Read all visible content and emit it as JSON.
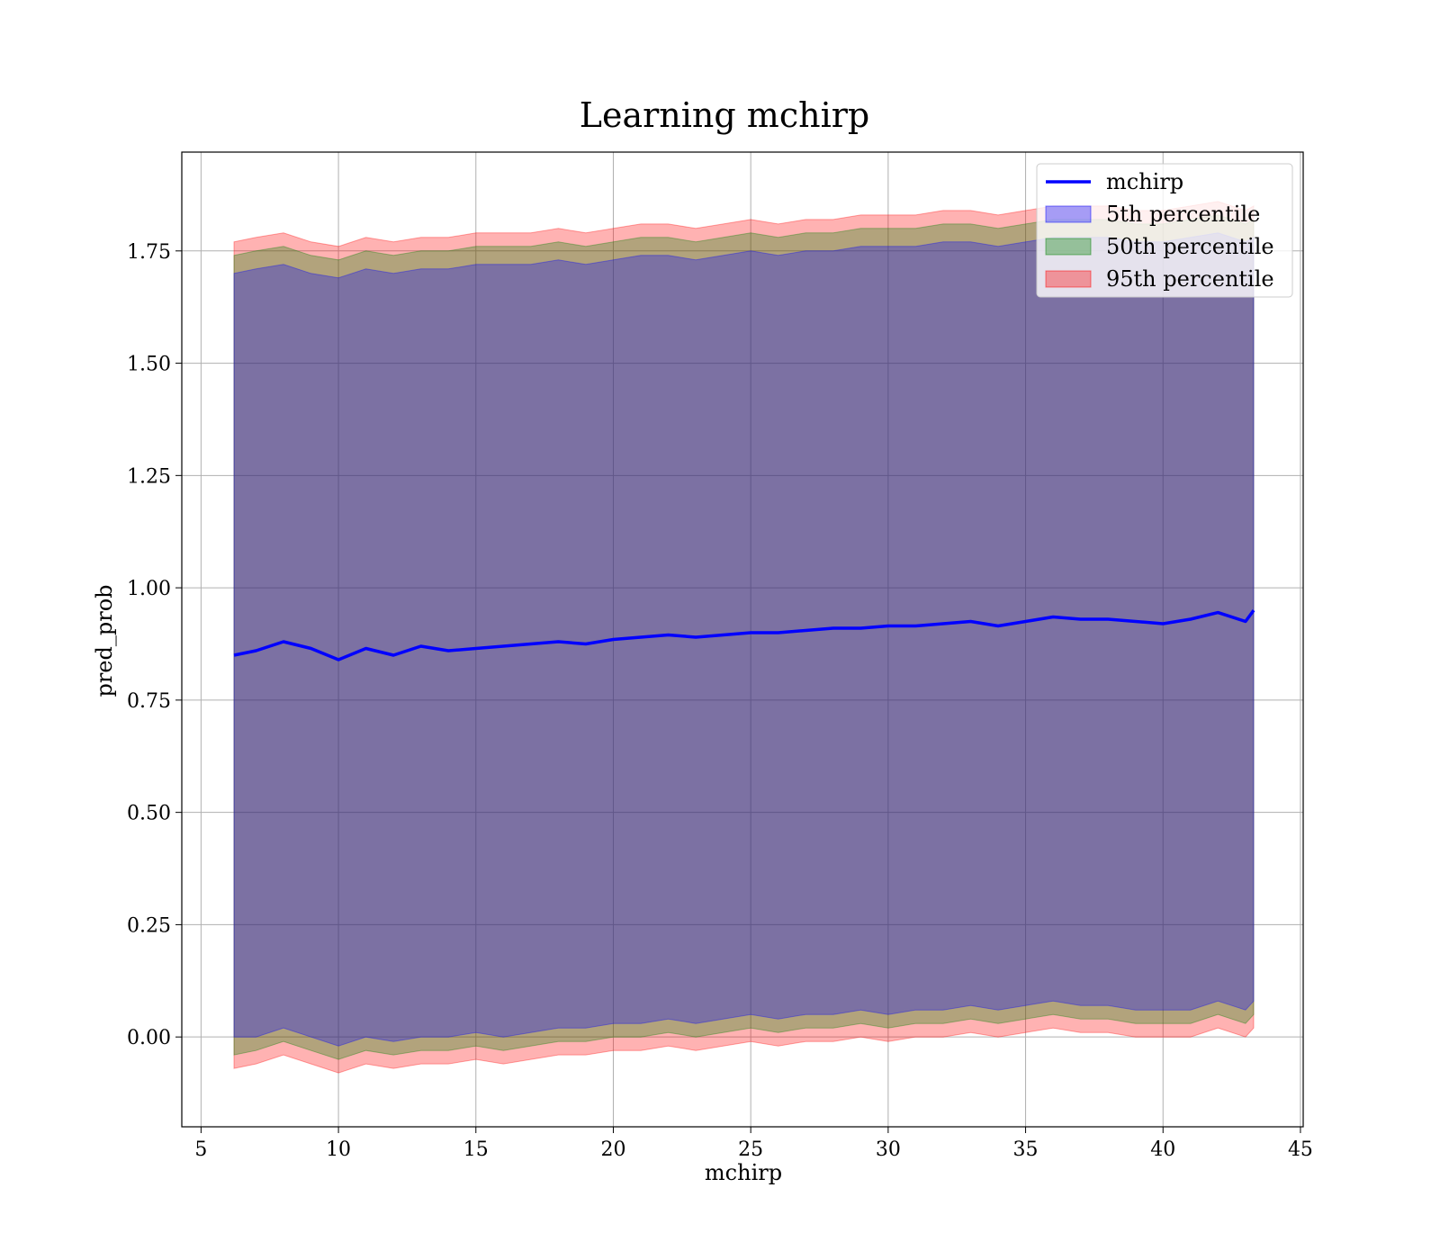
{
  "chart_data": {
    "type": "area",
    "title": "Learning mchirp",
    "xlabel": "mchirp",
    "ylabel": "pred_prob",
    "xlim": [
      4.3,
      45.1
    ],
    "ylim": [
      -0.2,
      1.97
    ],
    "xticks": [
      5,
      10,
      15,
      20,
      25,
      30,
      35,
      40,
      45
    ],
    "yticks": [
      "0.00",
      "0.25",
      "0.50",
      "0.75",
      "1.00",
      "1.25",
      "1.50",
      "1.75"
    ],
    "ytick_values": [
      0.0,
      0.25,
      0.5,
      0.75,
      1.0,
      1.25,
      1.5,
      1.75
    ],
    "grid": true,
    "legend_position": "top-right",
    "x": [
      6.2,
      7,
      8,
      9,
      10,
      11,
      12,
      13,
      14,
      15,
      16,
      17,
      18,
      19,
      20,
      21,
      22,
      23,
      24,
      25,
      26,
      27,
      28,
      29,
      30,
      31,
      32,
      33,
      34,
      35,
      36,
      37,
      38,
      39,
      40,
      41,
      42,
      43,
      43.3
    ],
    "series": [
      {
        "name": "mchirp",
        "kind": "line",
        "color": "#0000ff",
        "values": [
          0.85,
          0.86,
          0.88,
          0.865,
          0.84,
          0.865,
          0.85,
          0.87,
          0.86,
          0.865,
          0.87,
          0.875,
          0.88,
          0.875,
          0.885,
          0.89,
          0.895,
          0.89,
          0.895,
          0.9,
          0.9,
          0.905,
          0.91,
          0.91,
          0.915,
          0.915,
          0.92,
          0.925,
          0.915,
          0.925,
          0.935,
          0.93,
          0.93,
          0.925,
          0.92,
          0.93,
          0.945,
          0.925,
          0.95
        ]
      },
      {
        "name": "5th percentile",
        "kind": "band",
        "color": "#0000ff",
        "lower": [
          0.0,
          0.0,
          0.02,
          0.0,
          -0.02,
          0.0,
          -0.01,
          0.0,
          0.0,
          0.01,
          0.0,
          0.01,
          0.02,
          0.02,
          0.03,
          0.03,
          0.04,
          0.03,
          0.04,
          0.05,
          0.04,
          0.05,
          0.05,
          0.06,
          0.05,
          0.06,
          0.06,
          0.07,
          0.06,
          0.07,
          0.08,
          0.07,
          0.07,
          0.06,
          0.06,
          0.06,
          0.08,
          0.06,
          0.08
        ],
        "upper": [
          1.7,
          1.71,
          1.72,
          1.7,
          1.69,
          1.71,
          1.7,
          1.71,
          1.71,
          1.72,
          1.72,
          1.72,
          1.73,
          1.72,
          1.73,
          1.74,
          1.74,
          1.73,
          1.74,
          1.75,
          1.74,
          1.75,
          1.75,
          1.76,
          1.76,
          1.76,
          1.77,
          1.77,
          1.76,
          1.77,
          1.78,
          1.78,
          1.78,
          1.77,
          1.77,
          1.78,
          1.79,
          1.77,
          1.78
        ]
      },
      {
        "name": "50th percentile",
        "kind": "band",
        "color": "#008000",
        "lower": [
          -0.04,
          -0.03,
          -0.01,
          -0.03,
          -0.05,
          -0.03,
          -0.04,
          -0.03,
          -0.03,
          -0.02,
          -0.03,
          -0.02,
          -0.01,
          -0.01,
          0.0,
          0.0,
          0.01,
          0.0,
          0.01,
          0.02,
          0.01,
          0.02,
          0.02,
          0.03,
          0.02,
          0.03,
          0.03,
          0.04,
          0.03,
          0.04,
          0.05,
          0.04,
          0.04,
          0.03,
          0.03,
          0.03,
          0.05,
          0.03,
          0.05
        ],
        "upper": [
          1.74,
          1.75,
          1.76,
          1.74,
          1.73,
          1.75,
          1.74,
          1.75,
          1.75,
          1.76,
          1.76,
          1.76,
          1.77,
          1.76,
          1.77,
          1.78,
          1.78,
          1.77,
          1.78,
          1.79,
          1.78,
          1.79,
          1.79,
          1.8,
          1.8,
          1.8,
          1.81,
          1.81,
          1.8,
          1.81,
          1.82,
          1.82,
          1.82,
          1.81,
          1.81,
          1.82,
          1.83,
          1.81,
          1.82
        ]
      },
      {
        "name": "95th percentile",
        "kind": "band",
        "color": "#ff0000",
        "lower": [
          -0.07,
          -0.06,
          -0.04,
          -0.06,
          -0.08,
          -0.06,
          -0.07,
          -0.06,
          -0.06,
          -0.05,
          -0.06,
          -0.05,
          -0.04,
          -0.04,
          -0.03,
          -0.03,
          -0.02,
          -0.03,
          -0.02,
          -0.01,
          -0.02,
          -0.01,
          -0.01,
          0.0,
          -0.01,
          0.0,
          0.0,
          0.01,
          0.0,
          0.01,
          0.02,
          0.01,
          0.01,
          0.0,
          0.0,
          0.0,
          0.02,
          0.0,
          0.02
        ],
        "upper": [
          1.77,
          1.78,
          1.79,
          1.77,
          1.76,
          1.78,
          1.77,
          1.78,
          1.78,
          1.79,
          1.79,
          1.79,
          1.8,
          1.79,
          1.8,
          1.81,
          1.81,
          1.8,
          1.81,
          1.82,
          1.81,
          1.82,
          1.82,
          1.83,
          1.83,
          1.83,
          1.84,
          1.84,
          1.83,
          1.84,
          1.85,
          1.85,
          1.85,
          1.84,
          1.84,
          1.85,
          1.86,
          1.84,
          1.85
        ]
      }
    ]
  }
}
